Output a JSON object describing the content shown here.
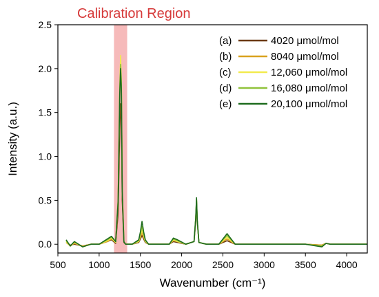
{
  "chart_data": {
    "type": "line",
    "title": "",
    "xlabel": "Wavenumber (cm⁻¹)",
    "ylabel": "Intensity (a.u.)",
    "xlim": [
      500,
      4250
    ],
    "ylim": [
      -0.1,
      2.5
    ],
    "xticks": [
      500,
      1000,
      1500,
      2000,
      2500,
      3000,
      3500,
      4000
    ],
    "yticks": [
      0.0,
      0.5,
      1.0,
      1.5,
      2.0,
      2.5
    ],
    "xtick_labels": [
      "500",
      "1000",
      "1500",
      "2000",
      "2500",
      "3000",
      "3500",
      "4000"
    ],
    "ytick_labels": [
      "0.0",
      "0.5",
      "1.0",
      "1.5",
      "2.0",
      "2.5"
    ],
    "grid": false,
    "legend_position": "top-right",
    "annotation": {
      "text": "Calibration Region",
      "x_range": [
        1180,
        1340
      ],
      "color": "#f4a9a9",
      "text_color": "#d63a3a"
    },
    "series": [
      {
        "name": "4020 μmol/mol",
        "tag": "(a)",
        "color": "#6b3a12",
        "x": [
          600,
          650,
          700,
          800,
          900,
          1000,
          1100,
          1150,
          1200,
          1230,
          1250,
          1260,
          1270,
          1280,
          1300,
          1320,
          1400,
          1480,
          1500,
          1520,
          1540,
          1560,
          1600,
          1700,
          1850,
          1900,
          1950,
          2050,
          2150,
          2170,
          2180,
          2190,
          2210,
          2300,
          2450,
          2500,
          2550,
          2600,
          2650,
          2800,
          3000,
          3500,
          3700,
          3750,
          3800,
          4000,
          4250
        ],
        "y": [
          0.02,
          -0.01,
          0.0,
          -0.02,
          0.0,
          0.0,
          0.03,
          0.05,
          0.01,
          0.35,
          1.3,
          1.6,
          1.4,
          0.5,
          0.02,
          0.0,
          0.0,
          0.02,
          0.06,
          0.1,
          0.06,
          0.02,
          0.0,
          0.0,
          0.0,
          0.03,
          0.02,
          0.0,
          0.03,
          0.25,
          0.48,
          0.25,
          0.02,
          0.0,
          0.0,
          0.02,
          0.04,
          0.02,
          0.0,
          0.0,
          0.0,
          0.0,
          -0.01,
          0.01,
          0.0,
          0.0,
          0.0
        ]
      },
      {
        "name": "8040 μmol/mol",
        "tag": "(b)",
        "color": "#d9a21e",
        "x": [
          600,
          650,
          700,
          800,
          900,
          1000,
          1100,
          1150,
          1200,
          1230,
          1250,
          1260,
          1270,
          1280,
          1300,
          1320,
          1400,
          1480,
          1500,
          1520,
          1540,
          1560,
          1600,
          1700,
          1850,
          1900,
          1950,
          2050,
          2150,
          2170,
          2180,
          2190,
          2210,
          2300,
          2450,
          2500,
          2550,
          2600,
          2650,
          2800,
          3000,
          3500,
          3700,
          3750,
          3800,
          4000,
          4250
        ],
        "y": [
          0.02,
          -0.02,
          0.01,
          -0.02,
          0.0,
          0.0,
          0.03,
          0.06,
          0.02,
          0.45,
          1.7,
          2.1,
          1.8,
          0.6,
          0.03,
          0.0,
          0.0,
          0.03,
          0.08,
          0.13,
          0.08,
          0.03,
          0.0,
          0.0,
          0.0,
          0.04,
          0.03,
          0.0,
          0.03,
          0.28,
          0.5,
          0.26,
          0.02,
          0.0,
          0.0,
          0.03,
          0.06,
          0.03,
          0.0,
          0.0,
          0.0,
          0.0,
          -0.01,
          0.01,
          0.0,
          0.0,
          0.0
        ]
      },
      {
        "name": "12,060 μmol/mol",
        "tag": "(c)",
        "color": "#f2ea4d",
        "x": [
          600,
          650,
          700,
          800,
          900,
          1000,
          1100,
          1150,
          1200,
          1230,
          1250,
          1260,
          1270,
          1280,
          1300,
          1320,
          1400,
          1480,
          1500,
          1520,
          1540,
          1560,
          1600,
          1700,
          1850,
          1900,
          1950,
          2050,
          2150,
          2170,
          2180,
          2190,
          2210,
          2300,
          2450,
          2500,
          2550,
          2600,
          2650,
          2800,
          3000,
          3500,
          3700,
          3750,
          3800,
          4000,
          4250
        ],
        "y": [
          0.03,
          -0.02,
          0.02,
          -0.03,
          0.0,
          0.0,
          0.04,
          0.07,
          0.02,
          0.5,
          1.8,
          2.15,
          1.85,
          0.65,
          0.03,
          0.0,
          0.0,
          0.03,
          0.1,
          0.16,
          0.1,
          0.03,
          0.0,
          0.0,
          0.0,
          0.05,
          0.03,
          0.0,
          0.03,
          0.29,
          0.51,
          0.27,
          0.02,
          0.0,
          0.0,
          0.04,
          0.08,
          0.04,
          0.0,
          0.0,
          0.0,
          0.0,
          -0.02,
          0.01,
          0.0,
          0.0,
          0.0
        ]
      },
      {
        "name": "16,080 μmol/mol",
        "tag": "(d)",
        "color": "#8fc23a",
        "x": [
          600,
          650,
          700,
          800,
          900,
          1000,
          1100,
          1150,
          1200,
          1230,
          1250,
          1260,
          1270,
          1280,
          1300,
          1320,
          1400,
          1480,
          1500,
          1520,
          1540,
          1560,
          1600,
          1700,
          1850,
          1900,
          1950,
          2050,
          2150,
          2170,
          2180,
          2190,
          2210,
          2300,
          2450,
          2500,
          2550,
          2600,
          2650,
          2800,
          3000,
          3500,
          3700,
          3750,
          3800,
          4000,
          4250
        ],
        "y": [
          0.04,
          -0.02,
          0.03,
          -0.03,
          0.0,
          0.0,
          0.05,
          0.08,
          0.03,
          0.5,
          1.75,
          2.05,
          1.8,
          0.62,
          0.03,
          0.0,
          0.0,
          0.04,
          0.12,
          0.2,
          0.12,
          0.04,
          0.0,
          0.0,
          0.0,
          0.06,
          0.04,
          0.0,
          0.03,
          0.3,
          0.52,
          0.27,
          0.02,
          0.0,
          0.0,
          0.05,
          0.1,
          0.05,
          0.0,
          0.0,
          0.0,
          0.0,
          -0.02,
          0.01,
          0.0,
          0.0,
          0.0
        ]
      },
      {
        "name": "20,100 μmol/mol",
        "tag": "(e)",
        "color": "#1e6b1e",
        "x": [
          600,
          650,
          700,
          800,
          900,
          1000,
          1100,
          1150,
          1200,
          1230,
          1250,
          1260,
          1270,
          1280,
          1300,
          1320,
          1400,
          1480,
          1500,
          1520,
          1540,
          1560,
          1600,
          1700,
          1850,
          1900,
          1950,
          2050,
          2150,
          2170,
          2180,
          2190,
          2210,
          2300,
          2450,
          2500,
          2550,
          2600,
          2650,
          2800,
          3000,
          3500,
          3700,
          3750,
          3800,
          4000,
          4250
        ],
        "y": [
          0.05,
          -0.02,
          0.03,
          -0.03,
          0.0,
          0.0,
          0.06,
          0.09,
          0.03,
          0.48,
          1.72,
          2.0,
          1.75,
          0.6,
          0.03,
          0.0,
          0.0,
          0.05,
          0.14,
          0.26,
          0.14,
          0.05,
          0.0,
          0.0,
          0.0,
          0.07,
          0.05,
          0.0,
          0.03,
          0.3,
          0.53,
          0.27,
          0.02,
          0.0,
          0.0,
          0.06,
          0.12,
          0.06,
          0.0,
          0.0,
          0.0,
          0.0,
          -0.03,
          0.01,
          0.0,
          0.0,
          0.0
        ]
      }
    ]
  }
}
